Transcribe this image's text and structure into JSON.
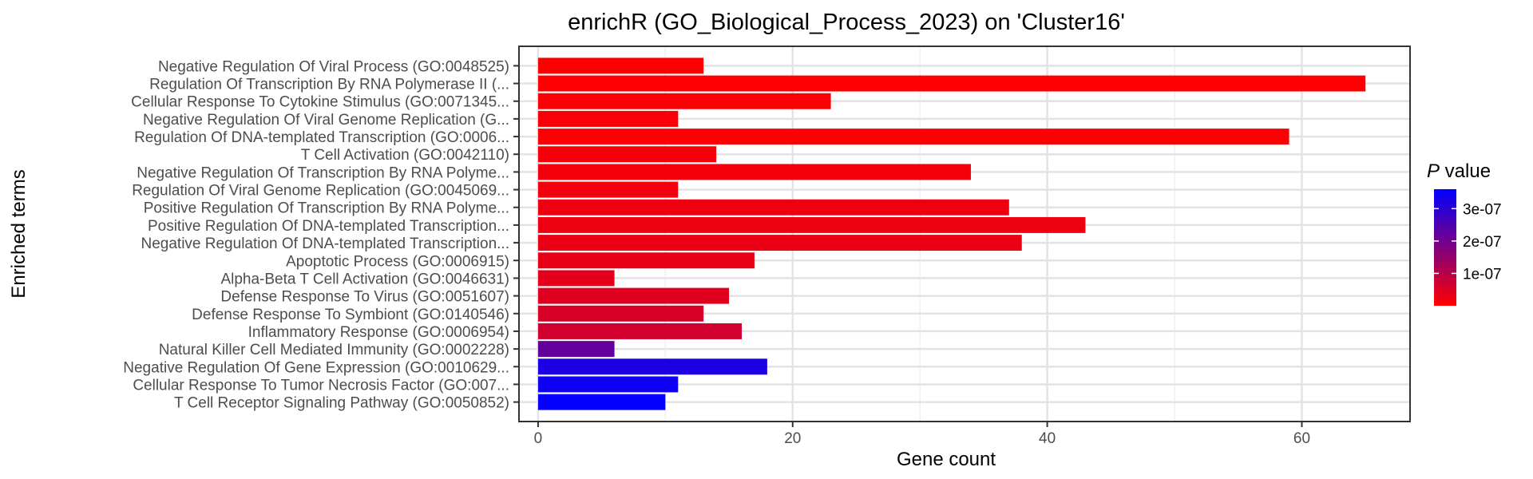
{
  "chart_data": {
    "type": "bar",
    "orientation": "horizontal",
    "title": "enrichR (GO_Biological_Process_2023) on 'Cluster16'",
    "xlabel": "Gene count",
    "ylabel": "Enriched terms",
    "xlim": [
      -1.5,
      68.5
    ],
    "x_ticks": [
      0,
      20,
      40,
      60
    ],
    "grid": true,
    "legend": {
      "title_italic": "P",
      "title_rest": " value",
      "position": "right",
      "type": "colorbar",
      "ticks": [
        {
          "label": "1e-07",
          "value": 1e-07
        },
        {
          "label": "2e-07",
          "value": 2e-07
        },
        {
          "label": "3e-07",
          "value": 3e-07
        }
      ],
      "range": [
        0,
        3.6e-07
      ],
      "low_color": "#ff0000",
      "high_color": "#0000ff"
    },
    "terms": [
      {
        "label": "Negative Regulation Of Viral Process (GO:0048525)",
        "count": 13,
        "p_value": 3e-09
      },
      {
        "label": "Regulation Of Transcription By RNA Polymerase II (...",
        "count": 65,
        "p_value": 2e-09
      },
      {
        "label": "Cellular Response To Cytokine Stimulus (GO:0071345...",
        "count": 23,
        "p_value": 6e-09
      },
      {
        "label": "Negative Regulation Of Viral Genome Replication (G...",
        "count": 11,
        "p_value": 1e-08
      },
      {
        "label": "Regulation Of DNA-templated Transcription (GO:0006...",
        "count": 59,
        "p_value": 4e-09
      },
      {
        "label": "T Cell Activation (GO:0042110)",
        "count": 14,
        "p_value": 1.4e-08
      },
      {
        "label": "Negative Regulation Of Transcription By RNA Polyme...",
        "count": 34,
        "p_value": 1.7e-08
      },
      {
        "label": "Regulation Of Viral Genome Replication (GO:0045069...",
        "count": 11,
        "p_value": 2e-08
      },
      {
        "label": "Positive Regulation Of Transcription By RNA Polyme...",
        "count": 37,
        "p_value": 2.3e-08
      },
      {
        "label": "Positive Regulation Of DNA-templated Transcription...",
        "count": 43,
        "p_value": 2.6e-08
      },
      {
        "label": "Negative Regulation Of DNA-templated Transcription...",
        "count": 38,
        "p_value": 2.9e-08
      },
      {
        "label": "Apoptotic Process (GO:0006915)",
        "count": 17,
        "p_value": 3.3e-08
      },
      {
        "label": "Alpha-Beta T Cell Activation (GO:0046631)",
        "count": 6,
        "p_value": 3.8e-08
      },
      {
        "label": "Defense Response To Virus (GO:0051607)",
        "count": 15,
        "p_value": 4.5e-08
      },
      {
        "label": "Defense Response To Symbiont (GO:0140546)",
        "count": 13,
        "p_value": 5.5e-08
      },
      {
        "label": "Inflammatory Response (GO:0006954)",
        "count": 16,
        "p_value": 6.5e-08
      },
      {
        "label": "Natural Killer Cell Mediated Immunity (GO:0002228)",
        "count": 6,
        "p_value": 2.2e-07
      },
      {
        "label": "Negative Regulation Of Gene Expression (GO:0010629...",
        "count": 18,
        "p_value": 3.2e-07
      },
      {
        "label": "Cellular Response To Tumor Necrosis Factor (GO:007...",
        "count": 11,
        "p_value": 3.4e-07
      },
      {
        "label": "T Cell Receptor Signaling Pathway (GO:0050852)",
        "count": 10,
        "p_value": 3.55e-07
      }
    ]
  }
}
